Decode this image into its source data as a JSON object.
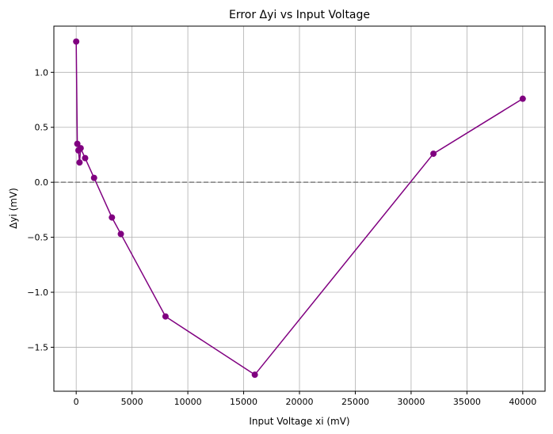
{
  "chart_data": {
    "type": "line",
    "title": "Error Δyi vs Input Voltage",
    "xlabel": "Input Voltage xi (mV)",
    "ylabel": "Δyi (mV)",
    "xlim": [
      -2000,
      42000
    ],
    "ylim": [
      -1.9,
      1.42
    ],
    "xticks": [
      0,
      5000,
      10000,
      15000,
      20000,
      25000,
      30000,
      35000,
      40000
    ],
    "xtick_labels": [
      "0",
      "5000",
      "10000",
      "15000",
      "20000",
      "25000",
      "30000",
      "35000",
      "40000"
    ],
    "yticks": [
      1.0,
      0.5,
      0.0,
      -0.5,
      -1.0,
      -1.5
    ],
    "ytick_labels": [
      "1.0",
      "0.5",
      "0.0",
      "−0.5",
      "−1.0",
      "−1.5"
    ],
    "grid": true,
    "reference_line": {
      "y": 0,
      "style": "dashed",
      "color": "#808080"
    },
    "series": [
      {
        "color": "#800080",
        "marker": "circle",
        "x": [
          0,
          100,
          200,
          300,
          400,
          800,
          1600,
          3200,
          4000,
          8000,
          16000,
          32000,
          40000
        ],
        "y": [
          1.28,
          0.35,
          0.29,
          0.18,
          0.31,
          0.22,
          0.04,
          -0.32,
          -0.47,
          -1.22,
          -1.75,
          0.26,
          0.76
        ]
      }
    ]
  }
}
